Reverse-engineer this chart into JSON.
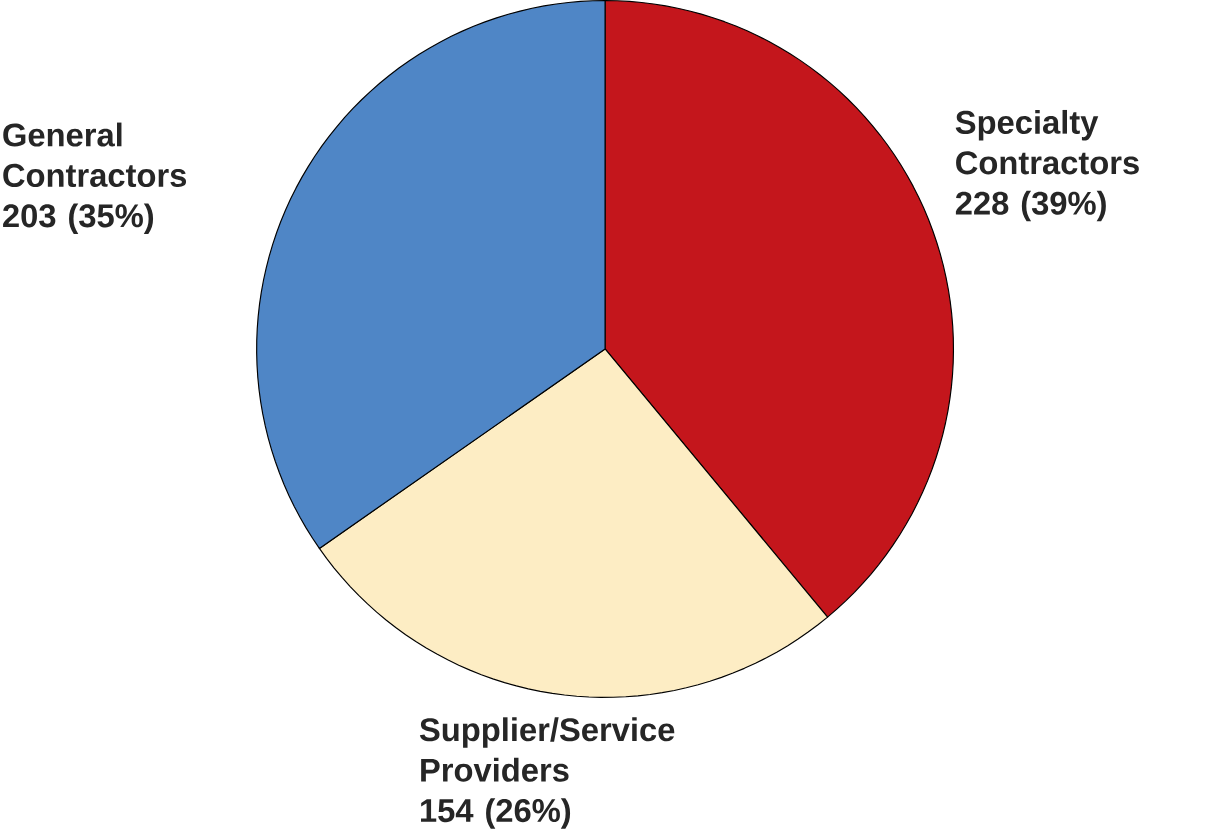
{
  "chart_data": {
    "type": "pie",
    "categories": [
      "Specialty Contractors",
      "Supplier/Service Providers",
      "General Contractors"
    ],
    "values": [
      228,
      154,
      203
    ],
    "value_labels": [
      "228 (39%)",
      "154 (26%)",
      "203 (35%)"
    ],
    "colors": [
      "#c4161c",
      "#fdedc4",
      "#4f86c6"
    ]
  }
}
